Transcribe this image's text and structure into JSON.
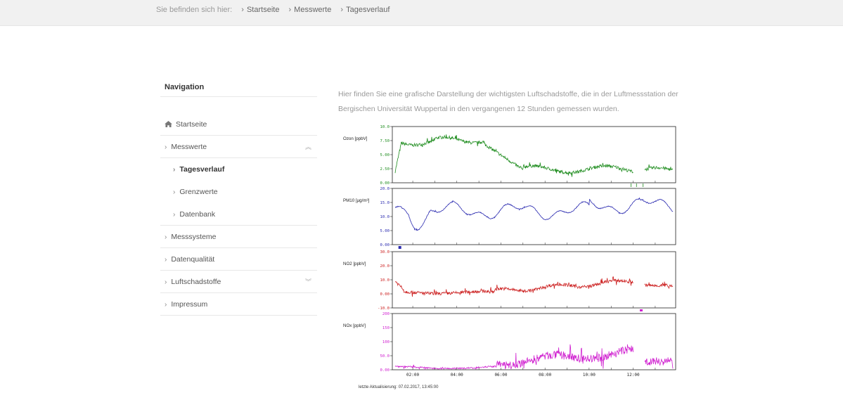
{
  "breadcrumb": {
    "prefix": "Sie befinden sich hier:",
    "items": [
      "Startseite",
      "Messwerte",
      "Tagesverlauf"
    ]
  },
  "navigation": {
    "title": "Navigation",
    "items": [
      {
        "label": "Startseite",
        "icon": "home-icon"
      },
      {
        "label": "Messwerte",
        "toggle": "collapse-icon"
      },
      {
        "label": "Tagesverlauf",
        "sub": true,
        "active": true
      },
      {
        "label": "Grenzwerte",
        "sub": true
      },
      {
        "label": "Datenbank",
        "sub": true
      },
      {
        "label": "Messsysteme"
      },
      {
        "label": "Datenqualität"
      },
      {
        "label": "Luftschadstoffe",
        "toggle": "expand-icon"
      },
      {
        "label": "Impressum"
      }
    ]
  },
  "main": {
    "intro": "Hier finden Sie eine grafische Darstellung der wichtigsten Luftschadstoffe, die in der Luftmessstation der Bergischen Universität Wuppertal in den vergangenen 12 Stunden gemessen wurden.",
    "update": "letzte Aktualisierung: 07.02.2017, 13:45:00"
  },
  "chart_data": {
    "type": "line",
    "x_ticks": [
      "02:00",
      "04:00",
      "06:00",
      "08:00",
      "10:00",
      "12:00"
    ],
    "panels": [
      {
        "ylabel": "Ozon [ppbV]",
        "color": "#1e8c1e",
        "ylim": [
          0,
          10
        ],
        "ticks": [
          "10.0",
          "7.50",
          "5.00",
          "2.50",
          "0.00"
        ]
      },
      {
        "ylabel": "PM10 [µg/m³]",
        "color": "#2b2bb0",
        "ylim": [
          0,
          25
        ],
        "ticks": [
          "20.0",
          "15.0",
          "10.0",
          "5.00",
          "0.00"
        ]
      },
      {
        "ylabel": "NO2 [ppbV]",
        "color": "#cc2020",
        "ylim": [
          -10,
          30
        ],
        "ticks": [
          "30.0",
          "20.0",
          "10.0",
          "0.00",
          "-10.0"
        ]
      },
      {
        "ylabel": "NOx [ppbV]",
        "color": "#d020d0",
        "ylim": [
          0,
          200
        ],
        "ticks": [
          "200",
          "150",
          "100",
          "50.0",
          "0.00"
        ]
      }
    ]
  },
  "colors": {
    "ozone": "#1e8c1e",
    "pm10": "#2b2bb0",
    "no2": "#cc2020",
    "nox": "#d020d0"
  }
}
